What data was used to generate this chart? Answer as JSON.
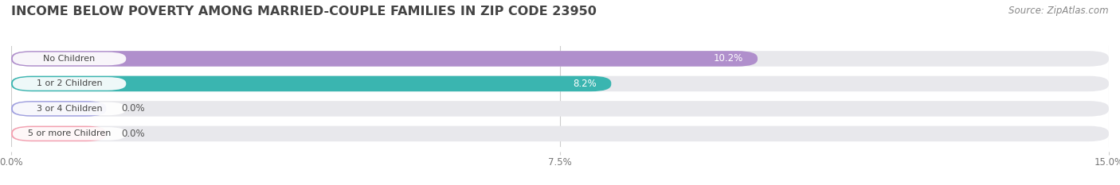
{
  "title": "INCOME BELOW POVERTY AMONG MARRIED-COUPLE FAMILIES IN ZIP CODE 23950",
  "source": "Source: ZipAtlas.com",
  "categories": [
    "No Children",
    "1 or 2 Children",
    "3 or 4 Children",
    "5 or more Children"
  ],
  "values": [
    10.2,
    8.2,
    0.0,
    0.0
  ],
  "bar_colors": [
    "#b08fcc",
    "#3ab5b0",
    "#a0a0e0",
    "#f4a0b0"
  ],
  "xlim": [
    0,
    15.0
  ],
  "xticks": [
    0.0,
    7.5,
    15.0
  ],
  "xtick_labels": [
    "0.0%",
    "7.5%",
    "15.0%"
  ],
  "title_fontsize": 11.5,
  "source_fontsize": 8.5,
  "bar_height": 0.62,
  "background_color": "#ffffff",
  "bar_background_color": "#e8e8ec"
}
